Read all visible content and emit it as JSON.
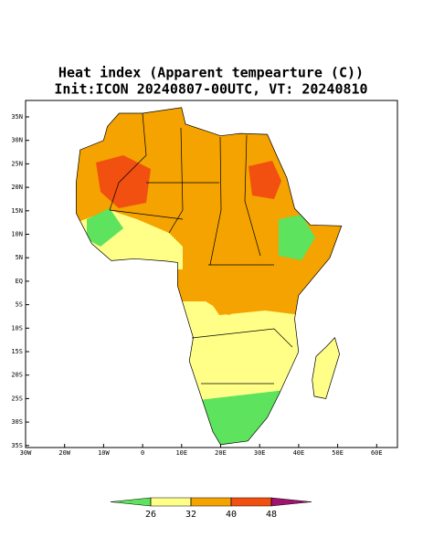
{
  "header": {
    "title": "Heat index (Apparent tempearture (C))",
    "subtitle": "Init:ICON 20240807-00UTC, VT: 20240810"
  },
  "map": {
    "y_labels": [
      "35N",
      "30N",
      "25N",
      "20N",
      "15N",
      "10N",
      "5N",
      "EQ",
      "5S",
      "10S",
      "15S",
      "20S",
      "25S",
      "30S",
      "35S"
    ],
    "x_labels": [
      "30W",
      "20W",
      "10W",
      "0",
      "10E",
      "20E",
      "30E",
      "40E",
      "50E",
      "60E"
    ]
  },
  "colorbar": {
    "levels": [
      26,
      32,
      40,
      48
    ],
    "colors": [
      "#5de35d",
      "#ffff88",
      "#f4a300",
      "#f25010",
      "#a0146e"
    ]
  }
}
